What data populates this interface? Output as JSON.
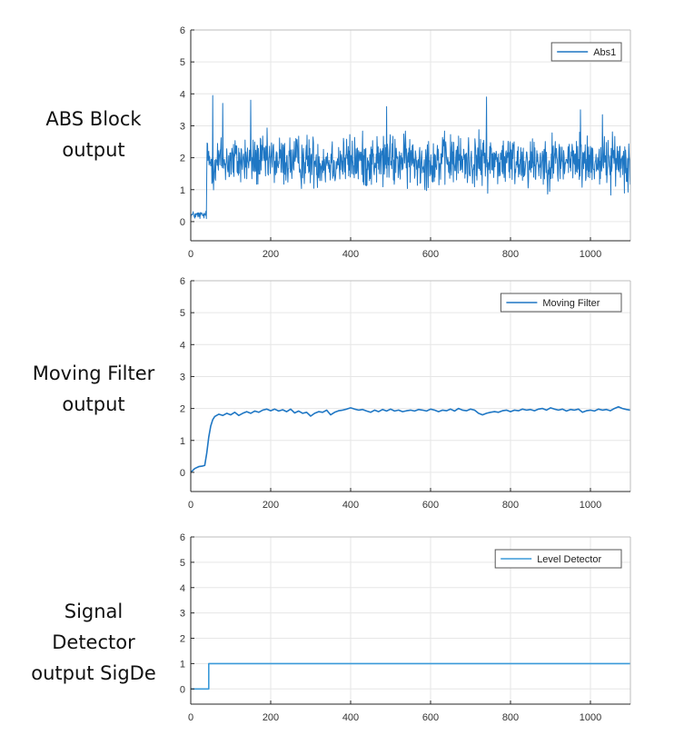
{
  "colors": {
    "line": "#1f77c4",
    "step_line": "#3a9ad9",
    "grid": "#e6e6e6",
    "axis": "#262626",
    "background": "#ffffff"
  },
  "panels": [
    {
      "label_lines": [
        "ABS Block",
        "output"
      ]
    },
    {
      "label_lines": [
        "Moving Filter",
        "output"
      ]
    },
    {
      "label_lines": [
        "Signal",
        "Detector",
        "output SigDe"
      ]
    }
  ],
  "chart_data": [
    {
      "type": "line",
      "series": [
        {
          "name": "Abs1",
          "description": "noisy absolute-value signal",
          "segments": [
            {
              "x_range": [
                0,
                40
              ],
              "mean": 0.2,
              "spread": 0.12,
              "samples": 40
            },
            {
              "x_range": [
                40,
                1100
              ],
              "mean": 1.9,
              "spread": 0.75,
              "min": 0.15,
              "max": 3.95,
              "samples": 1060
            }
          ],
          "peaks": [
            {
              "x": 55,
              "y": 3.95
            },
            {
              "x": 740,
              "y": 3.9
            },
            {
              "x": 80,
              "y": 3.7
            },
            {
              "x": 150,
              "y": 3.8
            },
            {
              "x": 490,
              "y": 3.6
            },
            {
              "x": 975,
              "y": 3.5
            },
            {
              "x": 1030,
              "y": 3.35
            }
          ]
        }
      ],
      "xlim": [
        0,
        1100
      ],
      "ylim": [
        -0.6,
        6
      ],
      "xticks": [
        0,
        200,
        400,
        600,
        800,
        1000
      ],
      "yticks": [
        0,
        1,
        2,
        3,
        4,
        5,
        6
      ],
      "grid": true,
      "legend": "top-right"
    },
    {
      "type": "line",
      "series": [
        {
          "name": "Moving Filter",
          "points": [
            [
              0,
              0.0
            ],
            [
              10,
              0.12
            ],
            [
              20,
              0.18
            ],
            [
              30,
              0.2
            ],
            [
              35,
              0.22
            ],
            [
              40,
              0.6
            ],
            [
              45,
              1.1
            ],
            [
              50,
              1.45
            ],
            [
              55,
              1.65
            ],
            [
              60,
              1.75
            ],
            [
              70,
              1.82
            ],
            [
              80,
              1.78
            ],
            [
              90,
              1.85
            ],
            [
              100,
              1.8
            ],
            [
              110,
              1.88
            ],
            [
              120,
              1.78
            ],
            [
              130,
              1.85
            ],
            [
              140,
              1.9
            ],
            [
              150,
              1.85
            ],
            [
              160,
              1.92
            ],
            [
              170,
              1.88
            ],
            [
              180,
              1.95
            ],
            [
              190,
              1.98
            ],
            [
              200,
              1.93
            ],
            [
              210,
              1.98
            ],
            [
              220,
              1.92
            ],
            [
              230,
              1.96
            ],
            [
              240,
              1.9
            ],
            [
              250,
              1.98
            ],
            [
              260,
              1.86
            ],
            [
              270,
              1.92
            ],
            [
              280,
              1.85
            ],
            [
              290,
              1.88
            ],
            [
              300,
              1.76
            ],
            [
              310,
              1.85
            ],
            [
              320,
              1.9
            ],
            [
              330,
              1.88
            ],
            [
              340,
              1.95
            ],
            [
              350,
              1.8
            ],
            [
              360,
              1.88
            ],
            [
              370,
              1.93
            ],
            [
              380,
              1.95
            ],
            [
              390,
              1.98
            ],
            [
              400,
              2.02
            ],
            [
              410,
              1.98
            ],
            [
              420,
              1.95
            ],
            [
              430,
              1.97
            ],
            [
              440,
              1.92
            ],
            [
              450,
              1.88
            ],
            [
              460,
              1.95
            ],
            [
              470,
              1.9
            ],
            [
              480,
              1.97
            ],
            [
              490,
              1.92
            ],
            [
              500,
              1.98
            ],
            [
              510,
              1.92
            ],
            [
              520,
              1.95
            ],
            [
              530,
              1.9
            ],
            [
              540,
              1.93
            ],
            [
              550,
              1.95
            ],
            [
              560,
              1.92
            ],
            [
              570,
              1.97
            ],
            [
              580,
              1.95
            ],
            [
              590,
              1.92
            ],
            [
              600,
              1.98
            ],
            [
              610,
              1.95
            ],
            [
              620,
              1.9
            ],
            [
              630,
              1.95
            ],
            [
              640,
              1.93
            ],
            [
              650,
              1.98
            ],
            [
              660,
              1.92
            ],
            [
              670,
              2.0
            ],
            [
              680,
              1.95
            ],
            [
              690,
              1.93
            ],
            [
              700,
              1.98
            ],
            [
              710,
              1.95
            ],
            [
              720,
              1.85
            ],
            [
              730,
              1.8
            ],
            [
              740,
              1.85
            ],
            [
              750,
              1.88
            ],
            [
              760,
              1.9
            ],
            [
              770,
              1.88
            ],
            [
              780,
              1.93
            ],
            [
              790,
              1.95
            ],
            [
              800,
              1.9
            ],
            [
              810,
              1.95
            ],
            [
              820,
              1.93
            ],
            [
              830,
              1.98
            ],
            [
              840,
              1.95
            ],
            [
              850,
              1.97
            ],
            [
              860,
              1.93
            ],
            [
              870,
              1.98
            ],
            [
              880,
              2.0
            ],
            [
              890,
              1.95
            ],
            [
              900,
              2.02
            ],
            [
              910,
              1.98
            ],
            [
              920,
              1.95
            ],
            [
              930,
              1.98
            ],
            [
              940,
              1.92
            ],
            [
              950,
              1.97
            ],
            [
              960,
              1.95
            ],
            [
              970,
              1.98
            ],
            [
              980,
              1.88
            ],
            [
              990,
              1.93
            ],
            [
              1000,
              1.95
            ],
            [
              1010,
              1.92
            ],
            [
              1020,
              1.98
            ],
            [
              1030,
              1.95
            ],
            [
              1040,
              1.97
            ],
            [
              1050,
              1.93
            ],
            [
              1060,
              2.0
            ],
            [
              1070,
              2.05
            ],
            [
              1080,
              2.0
            ],
            [
              1090,
              1.97
            ],
            [
              1100,
              1.95
            ]
          ]
        }
      ],
      "xlim": [
        0,
        1100
      ],
      "ylim": [
        -0.6,
        6
      ],
      "xticks": [
        0,
        200,
        400,
        600,
        800,
        1000
      ],
      "yticks": [
        0,
        1,
        2,
        3,
        4,
        5,
        6
      ],
      "grid": true,
      "legend": "top-right"
    },
    {
      "type": "line",
      "series": [
        {
          "name": "Level Detector",
          "points": [
            [
              0,
              0
            ],
            [
              45,
              0
            ],
            [
              45,
              1
            ],
            [
              1100,
              1
            ]
          ]
        }
      ],
      "xlim": [
        0,
        1100
      ],
      "ylim": [
        -0.6,
        6
      ],
      "xticks": [
        0,
        200,
        400,
        600,
        800,
        1000
      ],
      "yticks": [
        0,
        1,
        2,
        3,
        4,
        5,
        6
      ],
      "grid": true,
      "legend": "top-right"
    }
  ]
}
